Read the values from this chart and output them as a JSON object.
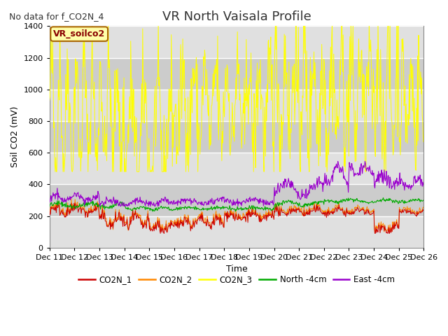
{
  "title": "VR North Vaisala Profile",
  "note": "No data for f_CO2N_4",
  "xlabel": "Time",
  "ylabel": "Soil CO2 (mV)",
  "ylim": [
    0,
    1400
  ],
  "yticks": [
    0,
    200,
    400,
    600,
    800,
    1000,
    1200,
    1400
  ],
  "bg_color": "#ffffff",
  "plot_bg": "#d8d8d8",
  "band_color_light": "#e8e8e8",
  "band_color_dark": "#d0d0d0",
  "legend_box_label": "VR_soilco2",
  "x_tick_labels": [
    "Dec 11",
    "Dec 12",
    "Dec 13",
    "Dec 14",
    "Dec 15",
    "Dec 16",
    "Dec 17",
    "Dec 18",
    "Dec 19",
    "Dec 20",
    "Dec 21",
    "Dec 22",
    "Dec 23",
    "Dec 24",
    "Dec 25",
    "Dec 26"
  ],
  "legend_entries": [
    {
      "label": "CO2N_1",
      "color": "#cc0000"
    },
    {
      "label": "CO2N_2",
      "color": "#ff8800"
    },
    {
      "label": "CO2N_3",
      "color": "#ffff00"
    },
    {
      "label": "North -4cm",
      "color": "#00aa00"
    },
    {
      "label": "East -4cm",
      "color": "#9900cc"
    }
  ],
  "title_fontsize": 13,
  "axis_fontsize": 9,
  "tick_fontsize": 8,
  "note_fontsize": 9
}
